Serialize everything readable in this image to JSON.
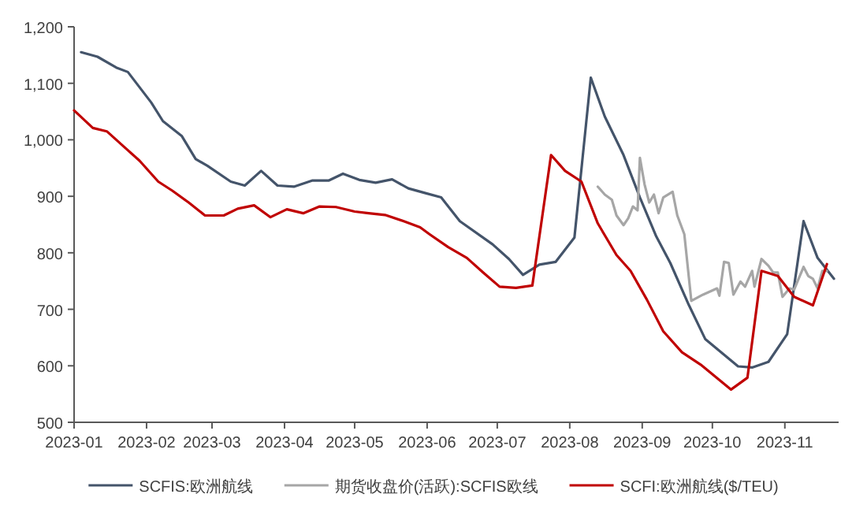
{
  "chart_data": {
    "type": "line",
    "legend": "bottom",
    "line_style": "solid",
    "xlim": [
      "2023-01-01",
      "2023-11-24"
    ],
    "xticks": [
      "2023-01",
      "2023-02",
      "2023-03",
      "2023-04",
      "2023-05",
      "2023-06",
      "2023-07",
      "2023-08",
      "2023-09",
      "2023-10",
      "2023-11"
    ],
    "ylim": [
      500,
      1200
    ],
    "yticks": [
      500,
      600,
      700,
      800,
      900,
      {
        "value": 1000,
        "label": "1,000"
      },
      {
        "value": 1100,
        "label": "1,100"
      },
      {
        "value": 1200,
        "label": "1,200"
      }
    ],
    "series": [
      {
        "name": "SCFIS:欧洲航线",
        "color": "#44546a",
        "x": [
          "2023-01-04",
          "2023-01-11",
          "2023-01-19",
          "2023-01-24",
          "2023-02-03",
          "2023-02-08",
          "2023-02-16",
          "2023-02-22",
          "2023-02-27",
          "2023-03-09",
          "2023-03-15",
          "2023-03-22",
          "2023-03-29",
          "2023-04-05",
          "2023-04-13",
          "2023-04-20",
          "2023-04-26",
          "2023-05-03",
          "2023-05-10",
          "2023-05-17",
          "2023-05-24",
          "2023-05-31",
          "2023-06-07",
          "2023-06-15",
          "2023-06-29",
          "2023-07-06",
          "2023-07-12",
          "2023-07-19",
          "2023-07-26",
          "2023-08-03",
          "2023-08-10",
          "2023-08-16",
          "2023-08-24",
          "2023-08-31",
          "2023-09-07",
          "2023-09-13",
          "2023-09-21",
          "2023-09-28",
          "2023-10-12",
          "2023-10-18",
          "2023-10-25",
          "2023-11-02",
          "2023-11-09",
          "2023-11-15",
          "2023-11-22"
        ],
        "values": [
          1155,
          1147,
          1128,
          1120,
          1066,
          1033,
          1007,
          966,
          954,
          926,
          919,
          945,
          919,
          917,
          928,
          928,
          940,
          929,
          924,
          930,
          914,
          906,
          898,
          856,
          815,
          789,
          761,
          779,
          784,
          827,
          1110,
          1041,
          973,
          898,
          829,
          782,
          707,
          647,
          599,
          597,
          607,
          656,
          856,
          791,
          754
        ]
      },
      {
        "name": "期货收盘价(活跃):SCFIS欧线",
        "color": "#a6a6a6",
        "x": [
          "2023-08-13",
          "2023-08-16",
          "2023-08-19",
          "2023-08-21",
          "2023-08-24",
          "2023-08-26",
          "2023-08-28",
          "2023-08-30",
          "2023-08-31",
          "2023-09-02",
          "2023-09-04",
          "2023-09-06",
          "2023-09-08",
          "2023-09-10",
          "2023-09-14",
          "2023-09-16",
          "2023-09-19",
          "2023-09-22",
          "2023-09-27",
          "2023-10-03",
          "2023-10-04",
          "2023-10-06",
          "2023-10-08",
          "2023-10-10",
          "2023-10-13",
          "2023-10-15",
          "2023-10-18",
          "2023-10-19",
          "2023-10-22",
          "2023-10-25",
          "2023-10-27",
          "2023-10-29",
          "2023-10-31",
          "2023-11-03",
          "2023-11-05",
          "2023-11-09",
          "2023-11-11",
          "2023-11-13",
          "2023-11-15",
          "2023-11-17",
          "2023-11-19"
        ],
        "values": [
          917,
          903,
          894,
          866,
          849,
          861,
          882,
          875,
          968,
          921,
          889,
          903,
          870,
          898,
          908,
          866,
          833,
          715,
          726,
          737,
          724,
          784,
          782,
          726,
          749,
          740,
          768,
          740,
          789,
          777,
          765,
          765,
          722,
          737,
          735,
          775,
          759,
          754,
          737,
          768,
          768
        ]
      },
      {
        "name": "SCFI:欧洲航线($/TEU)",
        "color": "#c00000",
        "x": [
          "2023-01-01",
          "2023-01-09",
          "2023-01-15",
          "2023-01-22",
          "2023-01-29",
          "2023-02-06",
          "2023-02-12",
          "2023-02-19",
          "2023-02-26",
          "2023-03-06",
          "2023-03-12",
          "2023-03-19",
          "2023-03-26",
          "2023-04-02",
          "2023-04-09",
          "2023-04-16",
          "2023-04-23",
          "2023-05-01",
          "2023-05-07",
          "2023-05-14",
          "2023-05-22",
          "2023-05-29",
          "2023-06-02",
          "2023-06-10",
          "2023-06-18",
          "2023-06-25",
          "2023-07-02",
          "2023-07-09",
          "2023-07-16",
          "2023-07-24",
          "2023-07-30",
          "2023-08-06",
          "2023-08-13",
          "2023-08-21",
          "2023-08-27",
          "2023-09-03",
          "2023-09-10",
          "2023-09-18",
          "2023-09-26",
          "2023-10-09",
          "2023-10-16",
          "2023-10-22",
          "2023-10-29",
          "2023-11-05",
          "2023-11-13",
          "2023-11-19"
        ],
        "values": [
          1052,
          1021,
          1015,
          989,
          963,
          926,
          910,
          889,
          866,
          866,
          878,
          884,
          863,
          877,
          870,
          882,
          881,
          873,
          870,
          867,
          856,
          845,
          833,
          810,
          791,
          765,
          740,
          738,
          742,
          973,
          945,
          926,
          852,
          796,
          768,
          717,
          661,
          624,
          602,
          558,
          579,
          768,
          759,
          722,
          707,
          780
        ]
      }
    ]
  }
}
